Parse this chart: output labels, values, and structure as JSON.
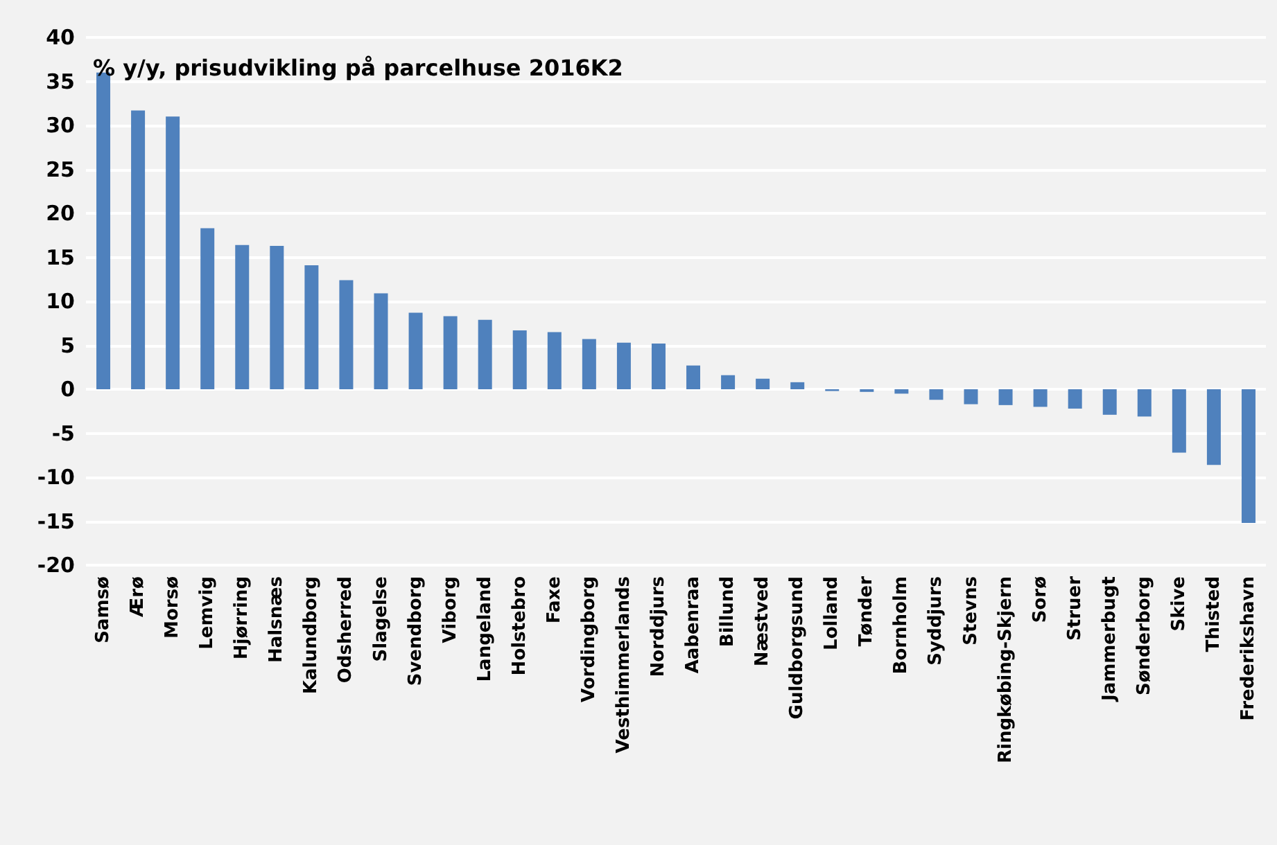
{
  "chart_data": {
    "type": "bar",
    "title": "% y/y, prisudvikling på parcelhuse 2016K2",
    "categories": [
      "Samsø",
      "Ærø",
      "Morsø",
      "Lemvig",
      "Hjørring",
      "Halsnæs",
      "Kalundborg",
      "Odsherred",
      "Slagelse",
      "Svendborg",
      "Viborg",
      "Langeland",
      "Holstebro",
      "Faxe",
      "Vordingborg",
      "Vesthimmerlands",
      "Norddjurs",
      "Aabenraa",
      "Billund",
      "Næstved",
      "Guldborgsund",
      "Lolland",
      "Tønder",
      "Bornholm",
      "Syddjurs",
      "Stevns",
      "Ringkøbing-Skjern",
      "Sorø",
      "Struer",
      "Jammerbugt",
      "Sønderborg",
      "Skive",
      "Thisted",
      "Frederikshavn"
    ],
    "values": [
      36.0,
      31.7,
      31.0,
      18.3,
      16.4,
      16.3,
      14.1,
      12.4,
      10.9,
      8.7,
      8.3,
      7.9,
      6.7,
      6.5,
      5.7,
      5.3,
      5.2,
      2.7,
      1.6,
      1.2,
      0.8,
      -0.2,
      -0.3,
      -0.5,
      -1.2,
      -1.7,
      -1.8,
      -2.0,
      -2.2,
      -2.9,
      -3.1,
      -7.2,
      -8.6,
      -15.2
    ],
    "color": "#4f81bd",
    "ylim": [
      -20,
      40
    ],
    "yticks": [
      -20,
      -15,
      -10,
      -5,
      0,
      5,
      10,
      15,
      20,
      25,
      30,
      35,
      40
    ],
    "grid": "y"
  }
}
